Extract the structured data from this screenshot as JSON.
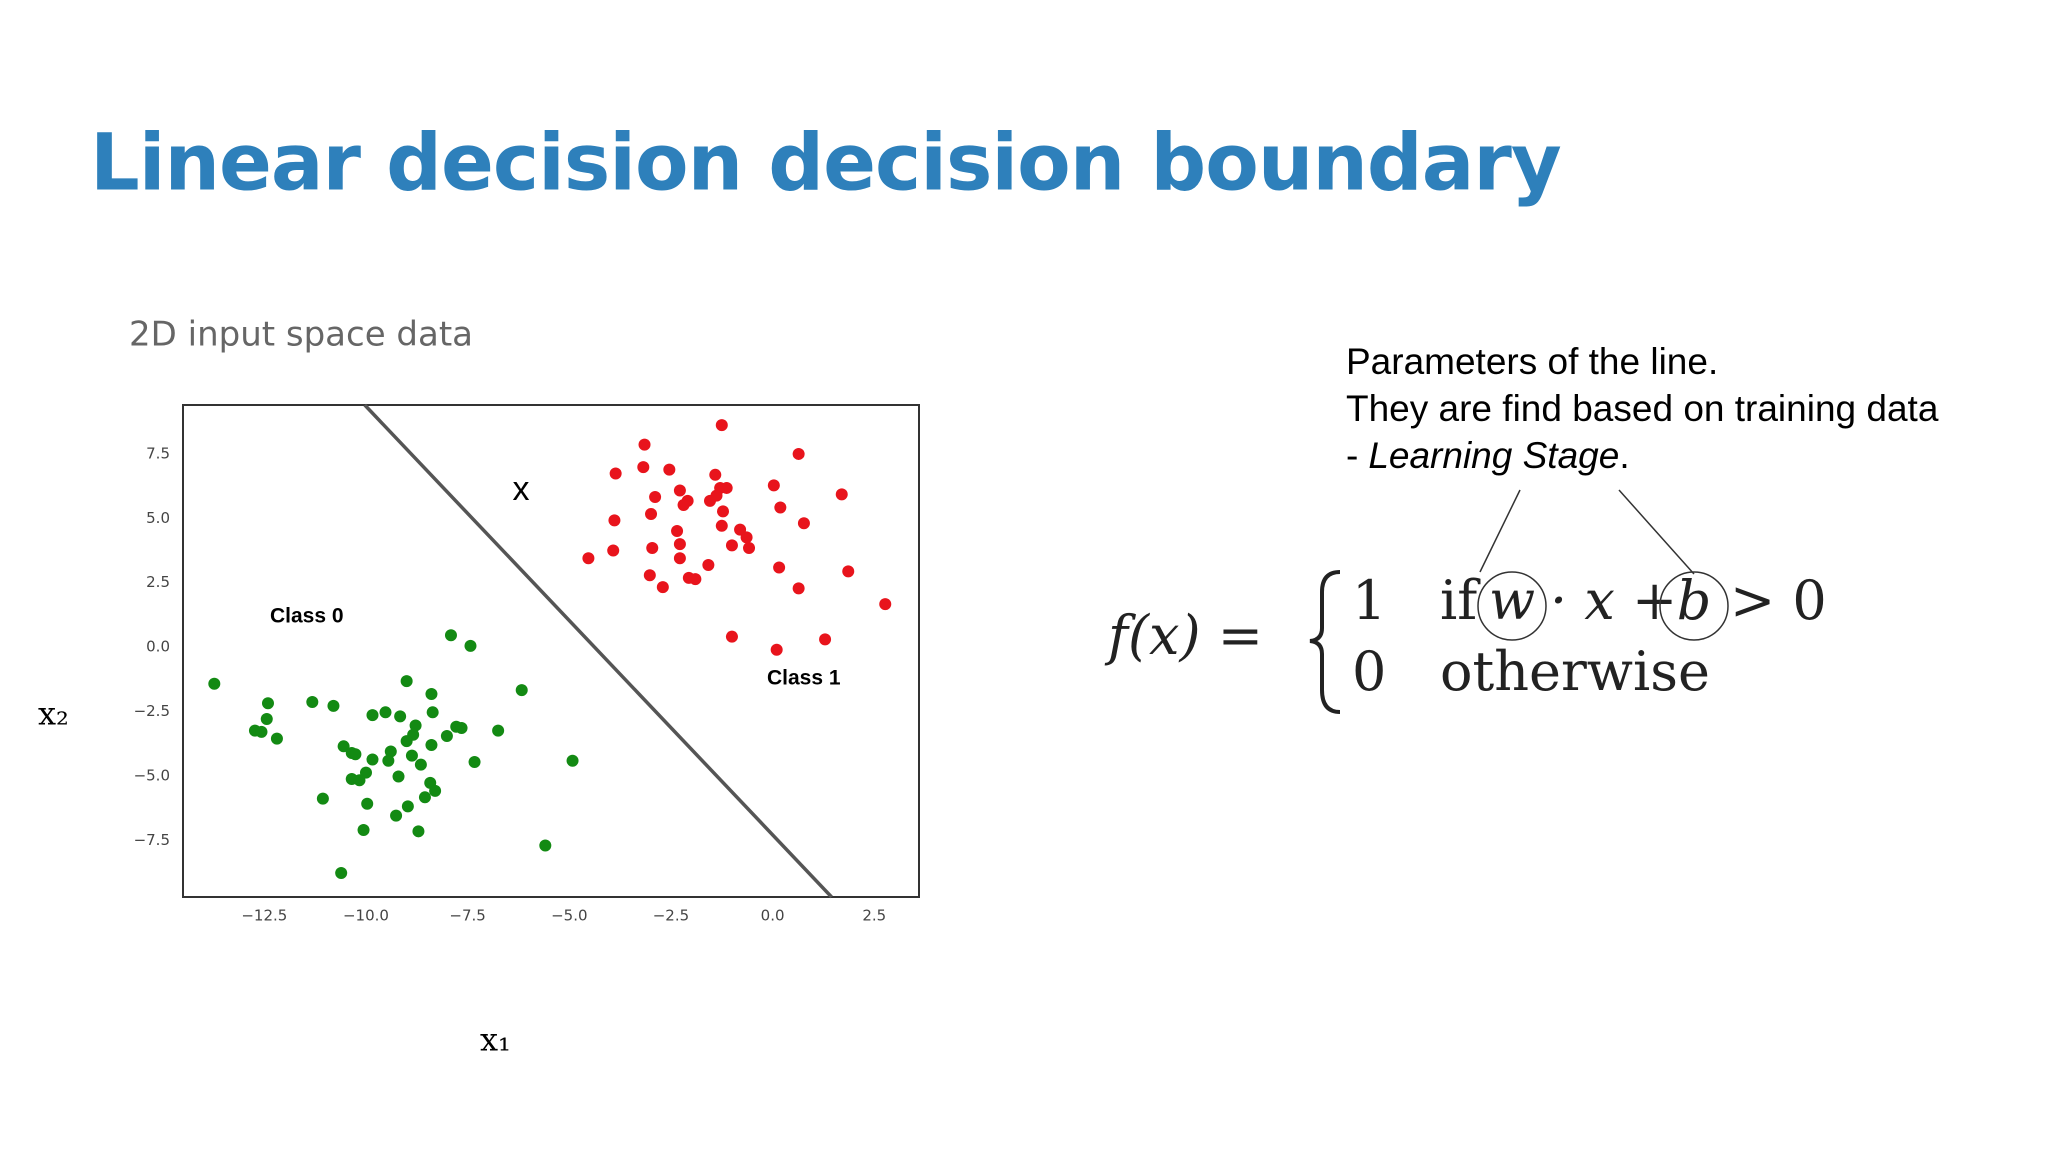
{
  "title": "Linear decision decision boundary",
  "chart_data": {
    "type": "scatter",
    "title": "2D input space data",
    "x_label": "x₁",
    "y_label": "x₂",
    "xlim": [
      -14.5,
      3.6
    ],
    "ylim": [
      -9.7,
      9.4
    ],
    "xticks": [
      {
        "value": -12.5,
        "label": "−12.5"
      },
      {
        "value": -10,
        "label": "−10.0"
      },
      {
        "value": -7.5,
        "label": "−7.5"
      },
      {
        "value": -5,
        "label": "−5.0"
      },
      {
        "value": -2.5,
        "label": "−2.5"
      },
      {
        "value": 0,
        "label": "0.0"
      },
      2.5
    ],
    "yticks": [
      7.5,
      {
        "value": 5,
        "label": "5.0"
      },
      2.5,
      {
        "value": 0,
        "label": "0.0"
      },
      {
        "value": -2.5,
        "label": "−2.5"
      },
      {
        "value": -5,
        "label": "−5.0"
      },
      {
        "value": -7.5,
        "label": "−7.5"
      }
    ],
    "grid": false,
    "series": [
      {
        "color": "#138a13",
        "x": [
          -7.91,
          -7.43,
          -13.73,
          -6.17,
          -9.0,
          -11.32,
          -10.8,
          -12.41,
          -8.39,
          -9.84,
          -9.52,
          -9.16,
          -12.44,
          -8.78,
          -8.36,
          -7.78,
          -7.65,
          -6.75,
          -12.73,
          -12.57,
          -12.19,
          -8.84,
          -8.01,
          -9.0,
          -8.39,
          -10.55,
          -10.35,
          -10.26,
          -9.84,
          -9.39,
          -9.45,
          -8.87,
          -7.33,
          -4.92,
          -8.65,
          -10.0,
          -10.35,
          -10.16,
          -9.2,
          -8.42,
          -8.3,
          -11.06,
          -8.55,
          -9.97,
          -8.97,
          -9.26,
          -10.06,
          -8.71,
          -5.59,
          -10.61
        ],
        "values": [
          0.46,
          0.05,
          -1.42,
          -1.67,
          -1.32,
          -2.13,
          -2.28,
          -2.18,
          -1.82,
          -2.64,
          -2.53,
          -2.69,
          -2.79,
          -3.04,
          -2.53,
          -3.09,
          -3.14,
          -3.24,
          -3.24,
          -3.29,
          -3.55,
          -3.4,
          -3.45,
          -3.65,
          -3.8,
          -3.85,
          -4.11,
          -4.16,
          -4.36,
          -4.05,
          -4.41,
          -4.21,
          -4.46,
          -4.41,
          -4.56,
          -4.87,
          -5.12,
          -5.17,
          -5.02,
          -5.27,
          -5.58,
          -5.88,
          -5.83,
          -6.08,
          -6.18,
          -6.54,
          -7.1,
          -7.15,
          -7.7,
          -8.77
        ]
      },
      {
        "color": "#e8141c",
        "x": [
          -1.25,
          -3.15,
          0.64,
          -3.86,
          -3.18,
          -2.54,
          -1.41,
          0.03,
          -2.28,
          -1.29,
          -1.13,
          1.7,
          -2.89,
          -2.09,
          -2.19,
          -1.54,
          -1.38,
          0.19,
          -3.89,
          -2.99,
          -1.22,
          0.77,
          -2.35,
          -1.25,
          -0.8,
          -0.64,
          -1.0,
          -3.92,
          -2.96,
          -2.28,
          -0.58,
          -4.53,
          -2.28,
          -1.58,
          0.16,
          1.86,
          -3.02,
          -2.06,
          -1.9,
          -2.7,
          0.64,
          2.77,
          -1.0,
          1.29,
          0.1
        ],
        "values": [
          8.62,
          7.86,
          7.5,
          6.74,
          6.99,
          6.89,
          6.69,
          6.28,
          6.08,
          6.18,
          6.18,
          5.93,
          5.83,
          5.68,
          5.52,
          5.68,
          5.88,
          5.42,
          4.92,
          5.17,
          5.27,
          4.81,
          4.51,
          4.71,
          4.56,
          4.26,
          3.95,
          3.75,
          3.85,
          4.0,
          3.85,
          3.45,
          3.45,
          3.19,
          3.09,
          2.94,
          2.79,
          2.69,
          2.64,
          2.33,
          2.28,
          1.67,
          0.41,
          0.3,
          -0.1
        ]
      }
    ],
    "boundary": {
      "color": "#555555",
      "x": [
        -10.03,
        1.45
      ],
      "values": [
        9.4,
        -9.7
      ]
    },
    "annotations": [
      "x",
      "Class 0",
      "Class 1"
    ]
  },
  "notes": {
    "lines": [
      "Parameters of the line.",
      "They are find based on training data"
    ],
    "last_line": {
      "prefix": "-",
      "emphasis": "Learning Stage",
      "suffix": "."
    }
  },
  "formula": {
    "lhs": "f(x) =",
    "case1_value": "1",
    "case1_if": "if",
    "weight": "w",
    "middle": "· x +",
    "bias": "b",
    "case1_tail": "> 0",
    "case2_value": "0",
    "case2_condition": "otherwise"
  }
}
